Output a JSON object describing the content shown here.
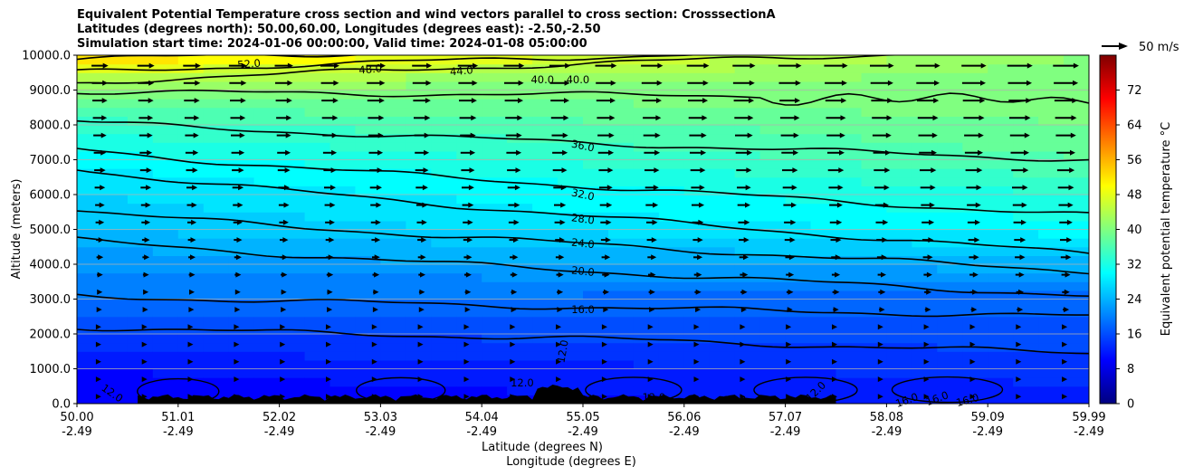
{
  "chart_data": {
    "type": "heatmap",
    "title_lines": [
      "Equivalent Potential Temperature cross section and wind vectors parallel to cross section: CrosssectionA",
      "Latitudes (degrees north): 50.00,60.00, Longitudes (degrees east): -2.50,-2.50",
      "Simulation start time: 2024-01-06 00:00:00, Valid time: 2024-01-08 05:00:00"
    ],
    "ylabel": "Altitude (meters)",
    "xlabel_1": "Latitude (degrees N)",
    "xlabel_2": "Longitude (degrees E)",
    "ylim": [
      0,
      10000
    ],
    "xlim": [
      50.0,
      59.99
    ],
    "y_ticks": [
      "0.0",
      "1000.0",
      "2000.0",
      "3000.0",
      "4000.0",
      "5000.0",
      "6000.0",
      "7000.0",
      "8000.0",
      "9000.0",
      "10000.0"
    ],
    "x_ticks_lat": [
      "50.00",
      "51.01",
      "52.02",
      "53.03",
      "54.04",
      "55.05",
      "56.06",
      "57.07",
      "58.08",
      "59.09",
      "59.99"
    ],
    "x_ticks_lon": [
      "-2.49",
      "-2.49",
      "-2.49",
      "-2.49",
      "-2.49",
      "-2.49",
      "-2.49",
      "-2.49",
      "-2.49",
      "-2.49",
      "-2.49"
    ],
    "grid": "horizontal",
    "colorbar": {
      "label": "Equivalent potential temperature °C",
      "range": [
        0,
        80
      ],
      "ticks": [
        "0",
        "8",
        "16",
        "24",
        "32",
        "40",
        "48",
        "56",
        "64",
        "72"
      ],
      "cmap": "jet"
    },
    "wind_key_label": "50 m/s",
    "contour_labels": [
      "52.0",
      "48.0",
      "44.0",
      "40.0",
      "40.0",
      "36.0",
      "32.0",
      "28.0",
      "24.0",
      "20.0",
      "16.0",
      "12.0",
      "12.0",
      "12.0",
      "12.0",
      "12.0",
      "12.0",
      "16.0",
      "16.0",
      "16.0"
    ],
    "field_profile": {
      "altitude_m": [
        0,
        500,
        1000,
        1500,
        2000,
        2500,
        3000,
        3500,
        4000,
        4500,
        5000,
        5500,
        6000,
        6500,
        7000,
        7500,
        8000,
        8500,
        9000,
        9500,
        10000
      ],
      "theta_e_at_50N": [
        9,
        10,
        11,
        13,
        15,
        17,
        19,
        20,
        22,
        23,
        25,
        26,
        27,
        28,
        30,
        32,
        34,
        37,
        40,
        46,
        54
      ],
      "theta_e_at_60N": [
        12,
        13,
        14,
        15,
        16,
        17,
        18,
        21,
        24,
        27,
        30,
        32,
        33,
        35,
        37,
        38,
        39,
        40,
        40,
        40,
        41
      ]
    },
    "contour_levels": [
      {
        "level": 52,
        "alt_west": 9880,
        "alt_east": 10400
      },
      {
        "level": 48,
        "alt_west": 9500,
        "alt_east": 10300
      },
      {
        "level": 44,
        "alt_west": 9200,
        "alt_east": 10200
      },
      {
        "level": 40,
        "alt_west": 8950,
        "alt_east": 8800
      },
      {
        "level": 36,
        "alt_west": 8100,
        "alt_east": 7000
      },
      {
        "level": 32,
        "alt_west": 7300,
        "alt_east": 5400
      },
      {
        "level": 28,
        "alt_west": 6750,
        "alt_east": 4300
      },
      {
        "level": 24,
        "alt_west": 5550,
        "alt_east": 3800
      },
      {
        "level": 20,
        "alt_west": 4700,
        "alt_east": 3100
      },
      {
        "level": 16,
        "alt_west": 3100,
        "alt_east": 2500
      },
      {
        "level": 12,
        "alt_west": 2200,
        "alt_east": 1600
      }
    ]
  }
}
